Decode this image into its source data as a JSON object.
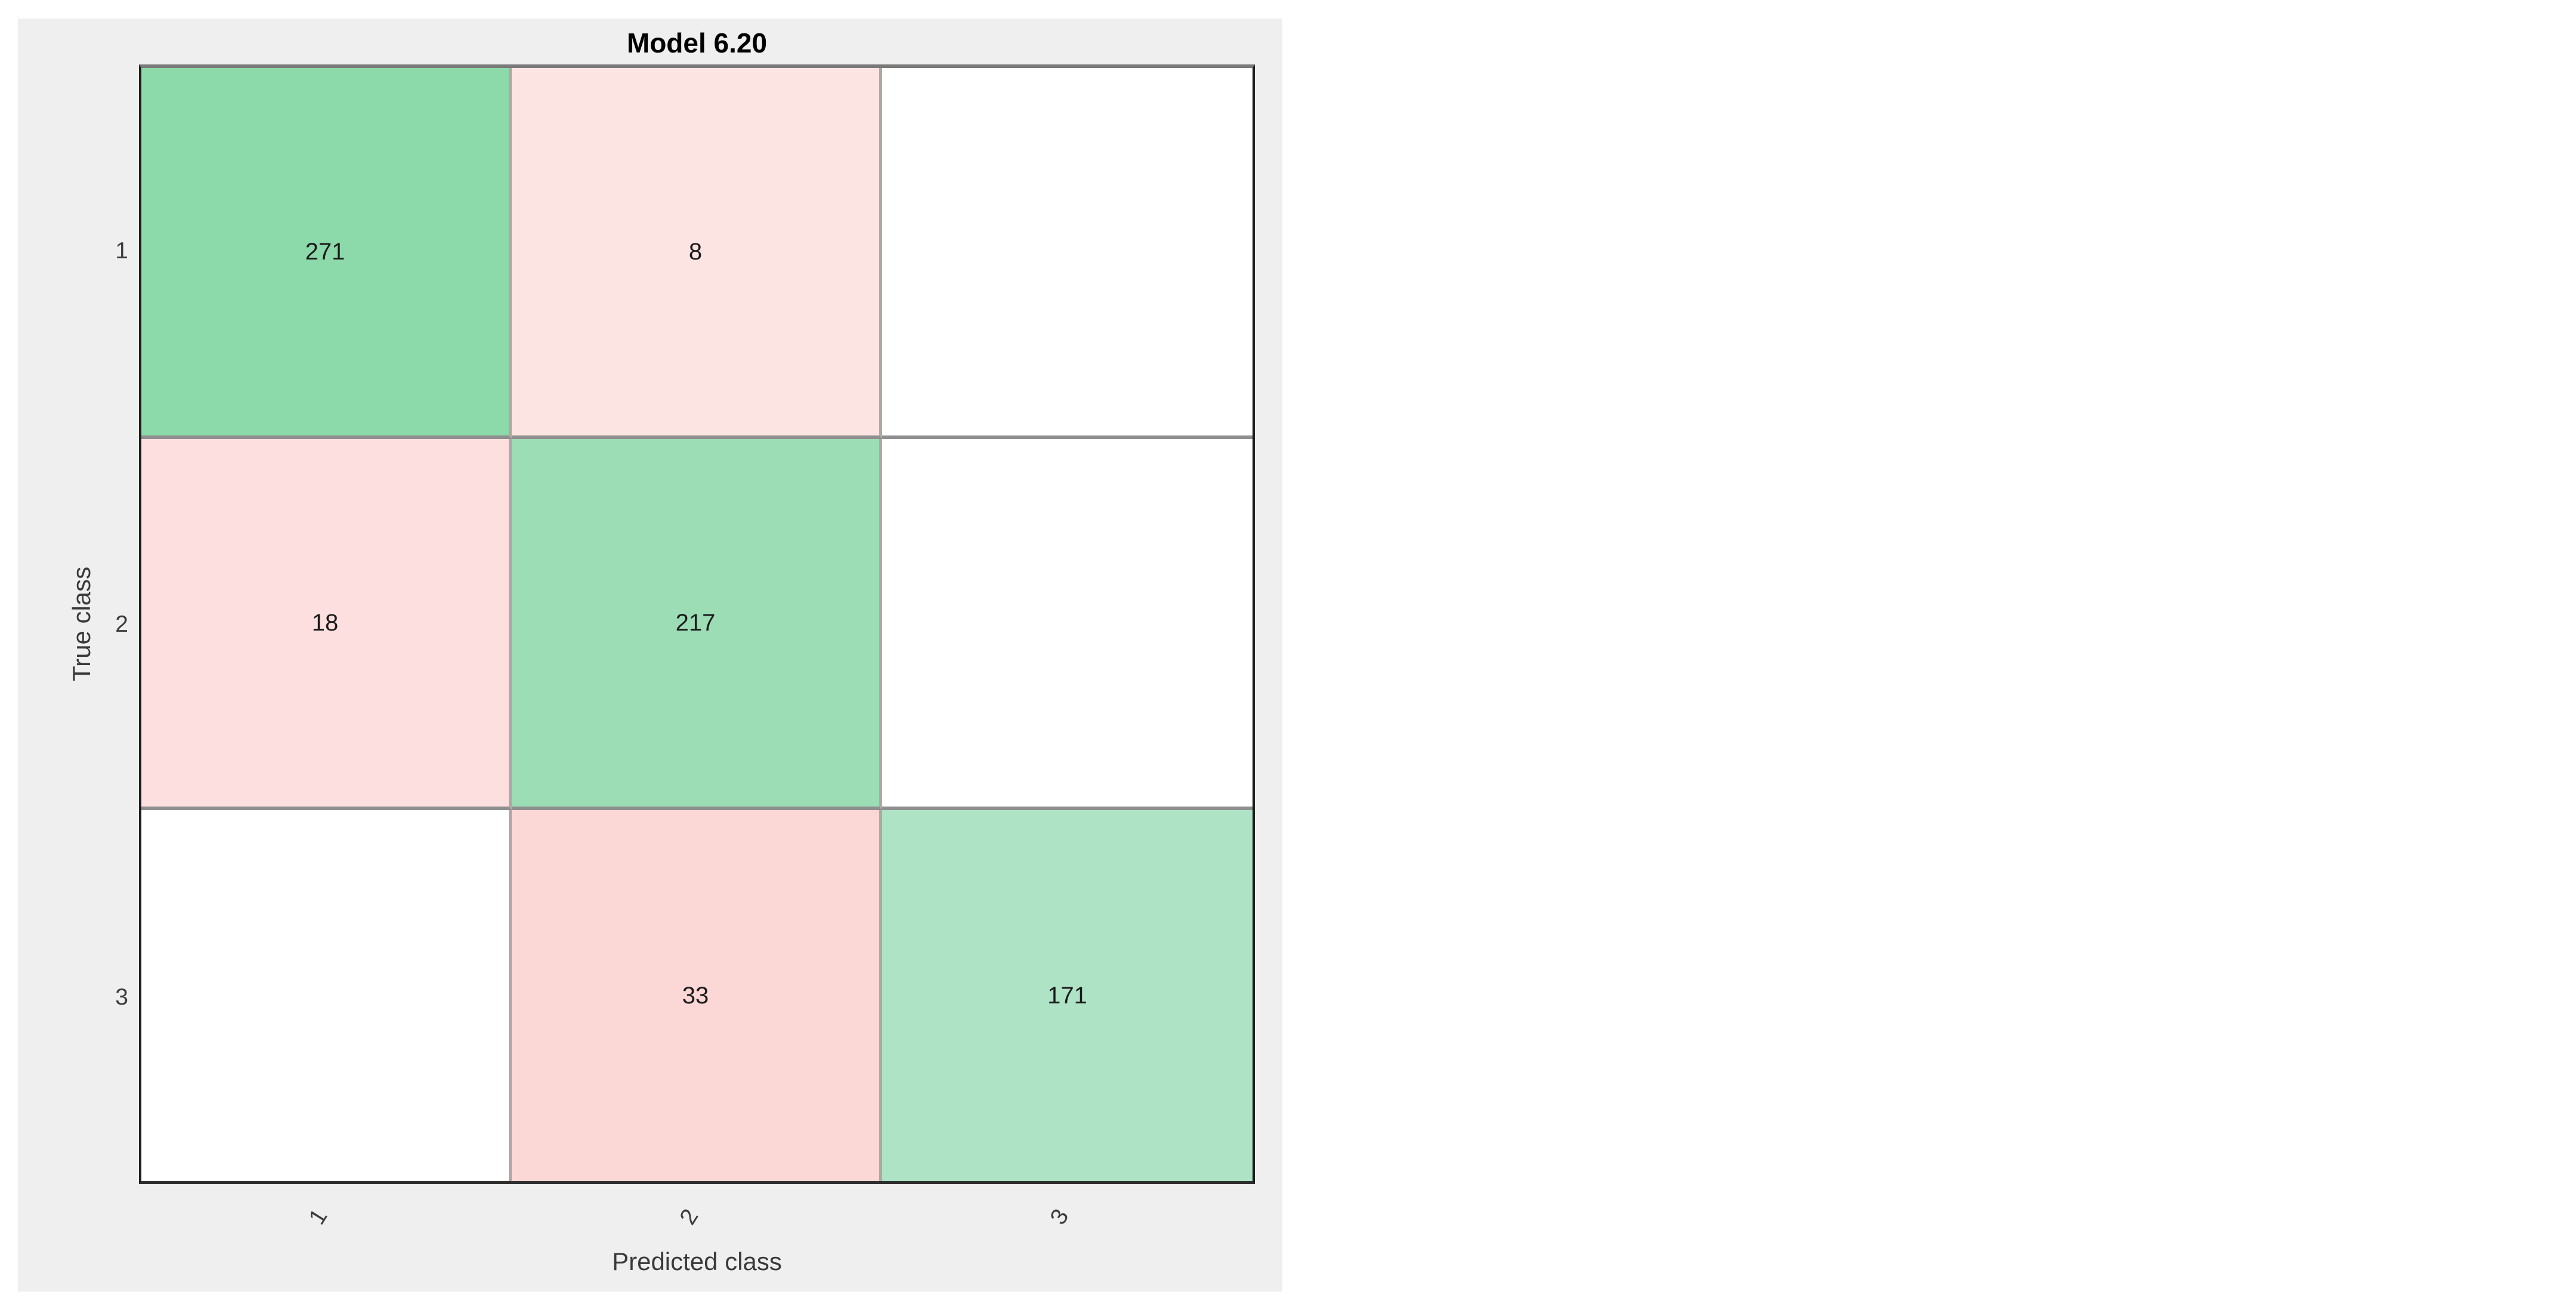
{
  "figure": {
    "background_color": "#EFEFEF",
    "plot_background_color": "#FFFFFF"
  },
  "chart_data": {
    "type": "heatmap",
    "subtype": "confusion-matrix",
    "title": "Model 6.20",
    "xlabel": "Predicted class",
    "ylabel": "True class",
    "x_tick_labels": [
      "1",
      "2",
      "3"
    ],
    "y_tick_labels": [
      "1",
      "2",
      "3"
    ],
    "matrix": [
      [
        271,
        8,
        null
      ],
      [
        18,
        217,
        null
      ],
      [
        null,
        33,
        171
      ]
    ],
    "cells": [
      {
        "row": 1,
        "col": 1,
        "value": "271",
        "color": "#8CD9AA"
      },
      {
        "row": 1,
        "col": 2,
        "value": "8",
        "color": "#FCE4E3"
      },
      {
        "row": 1,
        "col": 3,
        "value": "",
        "color": "#FFFFFF"
      },
      {
        "row": 2,
        "col": 1,
        "value": "18",
        "color": "#FCDFDE"
      },
      {
        "row": 2,
        "col": 2,
        "value": "217",
        "color": "#9CDDB6"
      },
      {
        "row": 2,
        "col": 3,
        "value": "",
        "color": "#FFFFFF"
      },
      {
        "row": 3,
        "col": 1,
        "value": "",
        "color": "#FFFFFF"
      },
      {
        "row": 3,
        "col": 2,
        "value": "33",
        "color": "#FBD7D5"
      },
      {
        "row": 3,
        "col": 3,
        "value": "171",
        "color": "#AFE3C6"
      }
    ],
    "colors": {
      "diagonal": "#8CD9AA",
      "off_diagonal": "#FCDFDE",
      "empty": "#FFFFFF",
      "gridline_vertical": "#AEA8A5",
      "gridline_horizontal": "#8F8F8F"
    },
    "grid": "on",
    "legend": "none",
    "x_tick_rotation_deg": -58
  }
}
